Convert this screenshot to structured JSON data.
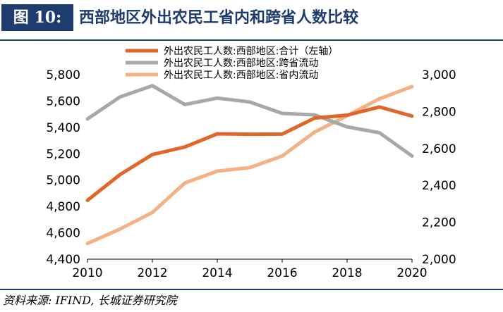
{
  "header": {
    "figure_label": "图 10:",
    "title": "西部地区外出农民工省内和跨省人数比较"
  },
  "source": "资料来源: IFIND, 长城证券研究院",
  "chart_data": {
    "type": "line",
    "x": [
      2010,
      2011,
      2012,
      2013,
      2014,
      2015,
      2016,
      2017,
      2018,
      2019,
      2020
    ],
    "x_ticks": [
      "2010",
      "2012",
      "2014",
      "2016",
      "2018",
      "2020"
    ],
    "y_left": {
      "range": [
        4400,
        5800
      ],
      "ticks": [
        "4,400",
        "4,600",
        "4,800",
        "5,000",
        "5,200",
        "5,400",
        "5,600",
        "5,800"
      ]
    },
    "y_right": {
      "range": [
        2000,
        3000
      ],
      "ticks": [
        "2,000",
        "2,200",
        "2,400",
        "2,600",
        "2,800",
        "3,000"
      ]
    },
    "legend_position": "top-center",
    "grid": false,
    "series": [
      {
        "name": "外出农民工人数:西部地区:合计（左轴）",
        "axis": "left",
        "color": "#e0662a",
        "values": [
          4846,
          5041,
          5194,
          5251,
          5351,
          5348,
          5349,
          5471,
          5493,
          5555,
          5486
        ]
      },
      {
        "name": "外出农民工人数:西部地区:跨省流动",
        "axis": "right",
        "color": "#a8a8a8",
        "values": [
          2760,
          2879,
          2940,
          2838,
          2873,
          2852,
          2790,
          2782,
          2717,
          2685,
          2559
        ]
      },
      {
        "name": "外出农民工人数:西部地区:省内流动",
        "axis": "right",
        "color": "#f4b183",
        "values": [
          2085,
          2163,
          2253,
          2413,
          2477,
          2496,
          2559,
          2689,
          2777,
          2870,
          2935
        ]
      }
    ]
  }
}
